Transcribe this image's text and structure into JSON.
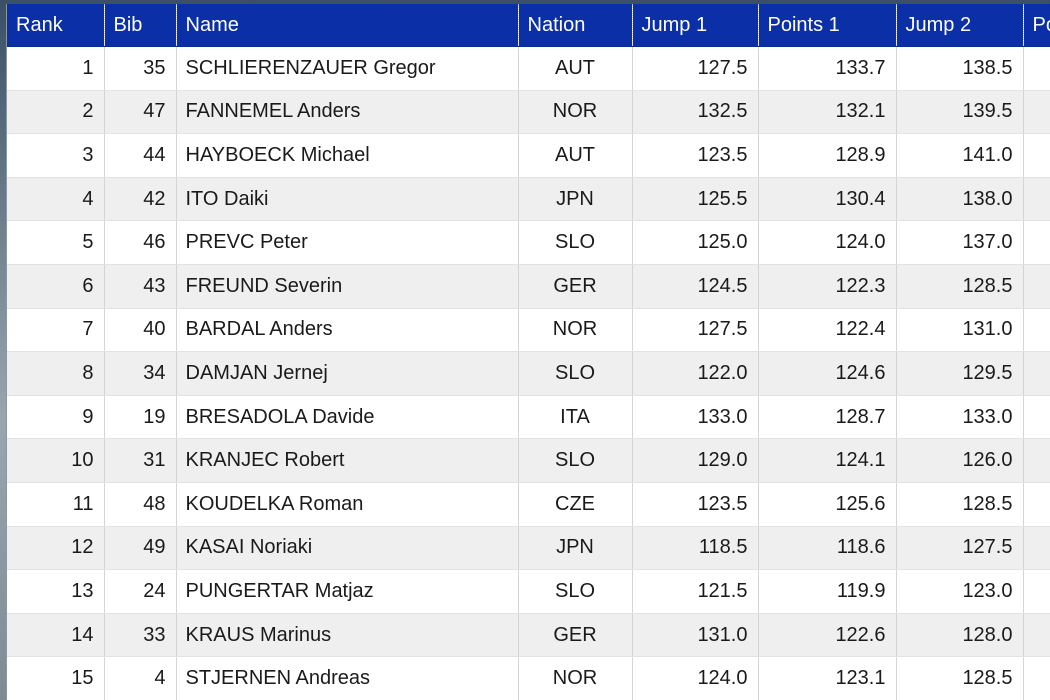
{
  "columns": {
    "rank": "Rank",
    "bib": "Bib",
    "name": "Name",
    "nation": "Nation",
    "jump1": "Jump 1",
    "points1": "Points 1",
    "jump2": "Jump 2",
    "points2_partial": "Po"
  },
  "rows": [
    {
      "rank": "1",
      "bib": "35",
      "name": "SCHLIERENZAUER Gregor",
      "nation": "AUT",
      "jump1": "127.5",
      "points1": "133.7",
      "jump2": "138.5"
    },
    {
      "rank": "2",
      "bib": "47",
      "name": "FANNEMEL Anders",
      "nation": "NOR",
      "jump1": "132.5",
      "points1": "132.1",
      "jump2": "139.5"
    },
    {
      "rank": "3",
      "bib": "44",
      "name": "HAYBOECK Michael",
      "nation": "AUT",
      "jump1": "123.5",
      "points1": "128.9",
      "jump2": "141.0"
    },
    {
      "rank": "4",
      "bib": "42",
      "name": "ITO Daiki",
      "nation": "JPN",
      "jump1": "125.5",
      "points1": "130.4",
      "jump2": "138.0"
    },
    {
      "rank": "5",
      "bib": "46",
      "name": "PREVC Peter",
      "nation": "SLO",
      "jump1": "125.0",
      "points1": "124.0",
      "jump2": "137.0"
    },
    {
      "rank": "6",
      "bib": "43",
      "name": "FREUND Severin",
      "nation": "GER",
      "jump1": "124.5",
      "points1": "122.3",
      "jump2": "128.5"
    },
    {
      "rank": "7",
      "bib": "40",
      "name": "BARDAL Anders",
      "nation": "NOR",
      "jump1": "127.5",
      "points1": "122.4",
      "jump2": "131.0"
    },
    {
      "rank": "8",
      "bib": "34",
      "name": "DAMJAN Jernej",
      "nation": "SLO",
      "jump1": "122.0",
      "points1": "124.6",
      "jump2": "129.5"
    },
    {
      "rank": "9",
      "bib": "19",
      "name": "BRESADOLA Davide",
      "nation": "ITA",
      "jump1": "133.0",
      "points1": "128.7",
      "jump2": "133.0"
    },
    {
      "rank": "10",
      "bib": "31",
      "name": "KRANJEC Robert",
      "nation": "SLO",
      "jump1": "129.0",
      "points1": "124.1",
      "jump2": "126.0"
    },
    {
      "rank": "11",
      "bib": "48",
      "name": "KOUDELKA Roman",
      "nation": "CZE",
      "jump1": "123.5",
      "points1": "125.6",
      "jump2": "128.5"
    },
    {
      "rank": "12",
      "bib": "49",
      "name": "KASAI Noriaki",
      "nation": "JPN",
      "jump1": "118.5",
      "points1": "118.6",
      "jump2": "127.5"
    },
    {
      "rank": "13",
      "bib": "24",
      "name": "PUNGERTAR Matjaz",
      "nation": "SLO",
      "jump1": "121.5",
      "points1": "119.9",
      "jump2": "123.0"
    },
    {
      "rank": "14",
      "bib": "33",
      "name": "KRAUS Marinus",
      "nation": "GER",
      "jump1": "131.0",
      "points1": "122.6",
      "jump2": "128.0"
    },
    {
      "rank": "15",
      "bib": "4",
      "name": "STJERNEN Andreas",
      "nation": "NOR",
      "jump1": "124.0",
      "points1": "123.1",
      "jump2": "128.5"
    }
  ],
  "colors": {
    "header_bg": "#0b2fa6",
    "header_text": "#ffffff",
    "row_alt": "#efefef"
  }
}
